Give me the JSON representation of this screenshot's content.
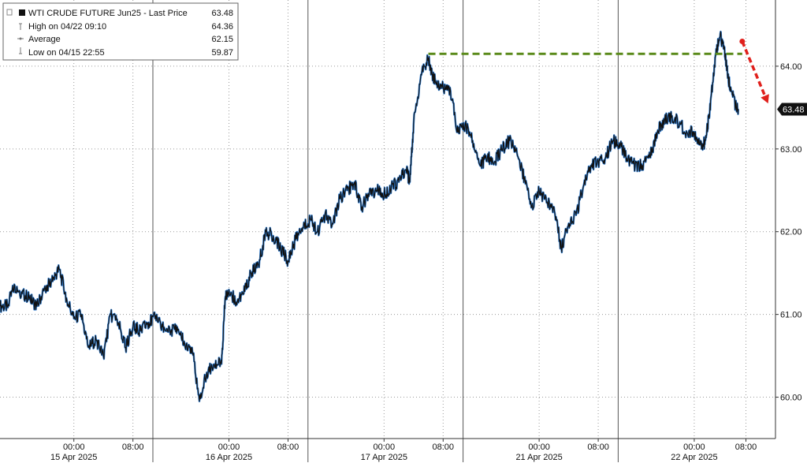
{
  "legend": {
    "title": "WTI CRUDE FUTURE Jun25 - Last Price",
    "title_value": "63.48",
    "rows": [
      {
        "label": "High on 04/22 09:10",
        "value": "64.36"
      },
      {
        "label": "Average",
        "value": "62.15"
      },
      {
        "label": "Low on 04/15 22:55",
        "value": "59.87"
      }
    ]
  },
  "colors": {
    "price_line": "#111111",
    "price_highlight": "#2f7fd6",
    "resistance": "#5a8a1a",
    "arrow": "#e0201c",
    "grid": "#9a9a9a",
    "last_badge": "#111111"
  },
  "chart_data": {
    "type": "line",
    "title": "WTI CRUDE FUTURE Jun25 - Last Price",
    "xlabel": "",
    "ylabel": "",
    "ylim": [
      59.5,
      64.8
    ],
    "yticks": [
      60,
      61,
      62,
      63,
      64
    ],
    "ytick_labels": [
      "60.00",
      "61.00",
      "62.00",
      "63.00",
      "64.00"
    ],
    "grid": true,
    "legend_position": "top-left",
    "sessions": [
      "15 Apr 2025",
      "16 Apr 2025",
      "17 Apr 2025",
      "21 Apr 2025",
      "22 Apr 2025"
    ],
    "xticks": [
      {
        "label": "00:00",
        "x": 1.0
      },
      {
        "label": "08:00",
        "x": 1.8
      },
      {
        "label": "00:00",
        "x": 3.1
      },
      {
        "label": "08:00",
        "x": 3.9
      },
      {
        "label": "00:00",
        "x": 5.2
      },
      {
        "label": "08:00",
        "x": 6.0
      },
      {
        "label": "00:00",
        "x": 7.3
      },
      {
        "label": "08:00",
        "x": 8.1
      },
      {
        "label": "00:00",
        "x": 9.4
      },
      {
        "label": "08:00",
        "x": 10.1
      }
    ],
    "date_labels": [
      {
        "label": "15 Apr 2025",
        "x": 1.0
      },
      {
        "label": "16 Apr 2025",
        "x": 3.1
      },
      {
        "label": "17 Apr 2025",
        "x": 5.2
      },
      {
        "label": "21 Apr 2025",
        "x": 7.3
      },
      {
        "label": "22 Apr 2025",
        "x": 9.4
      }
    ],
    "xlim": [
      0.0,
      10.5
    ],
    "series": [
      {
        "values": [
          [
            0.0,
            61.1
          ],
          [
            0.1,
            61.1
          ],
          [
            0.2,
            61.35
          ],
          [
            0.3,
            61.25
          ],
          [
            0.4,
            61.2
          ],
          [
            0.5,
            61.1
          ],
          [
            0.6,
            61.3
          ],
          [
            0.7,
            61.4
          ],
          [
            0.8,
            61.55
          ],
          [
            0.9,
            61.2
          ],
          [
            1.0,
            60.95
          ],
          [
            1.1,
            61.0
          ],
          [
            1.2,
            60.6
          ],
          [
            1.3,
            60.7
          ],
          [
            1.4,
            60.5
          ],
          [
            1.5,
            61.0
          ],
          [
            1.6,
            60.9
          ],
          [
            1.7,
            60.6
          ],
          [
            1.8,
            60.85
          ],
          [
            1.9,
            60.8
          ],
          [
            2.0,
            60.9
          ],
          [
            2.1,
            60.95
          ],
          [
            2.2,
            60.85
          ],
          [
            2.3,
            60.8
          ],
          [
            2.4,
            60.85
          ],
          [
            2.5,
            60.65
          ],
          [
            2.6,
            60.6
          ],
          [
            2.7,
            59.95
          ],
          [
            2.8,
            60.3
          ],
          [
            2.9,
            60.4
          ],
          [
            3.0,
            60.4
          ],
          [
            3.05,
            61.2
          ],
          [
            3.1,
            61.3
          ],
          [
            3.2,
            61.15
          ],
          [
            3.3,
            61.25
          ],
          [
            3.4,
            61.5
          ],
          [
            3.5,
            61.6
          ],
          [
            3.6,
            62.0
          ],
          [
            3.7,
            61.95
          ],
          [
            3.8,
            61.8
          ],
          [
            3.9,
            61.65
          ],
          [
            4.0,
            61.9
          ],
          [
            4.1,
            62.05
          ],
          [
            4.2,
            62.15
          ],
          [
            4.3,
            62.0
          ],
          [
            4.4,
            62.2
          ],
          [
            4.5,
            62.1
          ],
          [
            4.6,
            62.4
          ],
          [
            4.7,
            62.5
          ],
          [
            4.8,
            62.6
          ],
          [
            4.9,
            62.3
          ],
          [
            5.0,
            62.45
          ],
          [
            5.1,
            62.5
          ],
          [
            5.2,
            62.45
          ],
          [
            5.3,
            62.55
          ],
          [
            5.4,
            62.6
          ],
          [
            5.5,
            62.75
          ],
          [
            5.55,
            62.6
          ],
          [
            5.6,
            63.3
          ],
          [
            5.7,
            63.9
          ],
          [
            5.8,
            64.1
          ],
          [
            5.85,
            63.9
          ],
          [
            5.9,
            63.8
          ],
          [
            6.0,
            63.75
          ],
          [
            6.1,
            63.7
          ],
          [
            6.2,
            63.2
          ],
          [
            6.3,
            63.3
          ],
          [
            6.4,
            63.1
          ],
          [
            6.5,
            62.8
          ],
          [
            6.6,
            62.9
          ],
          [
            6.7,
            62.85
          ],
          [
            6.8,
            63.0
          ],
          [
            6.9,
            63.1
          ],
          [
            7.0,
            62.95
          ],
          [
            7.1,
            62.65
          ],
          [
            7.2,
            62.3
          ],
          [
            7.3,
            62.5
          ],
          [
            7.4,
            62.35
          ],
          [
            7.5,
            62.3
          ],
          [
            7.6,
            61.8
          ],
          [
            7.7,
            62.1
          ],
          [
            7.8,
            62.2
          ],
          [
            7.9,
            62.55
          ],
          [
            8.0,
            62.8
          ],
          [
            8.1,
            62.85
          ],
          [
            8.2,
            62.9
          ],
          [
            8.3,
            63.1
          ],
          [
            8.4,
            63.05
          ],
          [
            8.5,
            62.85
          ],
          [
            8.6,
            62.8
          ],
          [
            8.7,
            62.8
          ],
          [
            8.8,
            62.9
          ],
          [
            8.9,
            63.2
          ],
          [
            9.0,
            63.35
          ],
          [
            9.1,
            63.4
          ],
          [
            9.2,
            63.3
          ],
          [
            9.3,
            63.2
          ],
          [
            9.4,
            63.2
          ],
          [
            9.5,
            63.0
          ],
          [
            9.55,
            63.1
          ],
          [
            9.6,
            63.4
          ],
          [
            9.65,
            63.8
          ],
          [
            9.7,
            64.2
          ],
          [
            9.75,
            64.36
          ],
          [
            9.8,
            64.25
          ],
          [
            9.85,
            63.9
          ],
          [
            9.9,
            63.7
          ],
          [
            9.95,
            63.55
          ],
          [
            10.0,
            63.48
          ]
        ]
      }
    ],
    "last_value": "63.48",
    "resistance_level": {
      "y": 64.15,
      "x_start": 5.8,
      "x_end": 10.05
    },
    "arrow": {
      "x_start": 10.05,
      "y_start": 64.3,
      "x_end": 10.4,
      "y_end": 63.55
    }
  }
}
